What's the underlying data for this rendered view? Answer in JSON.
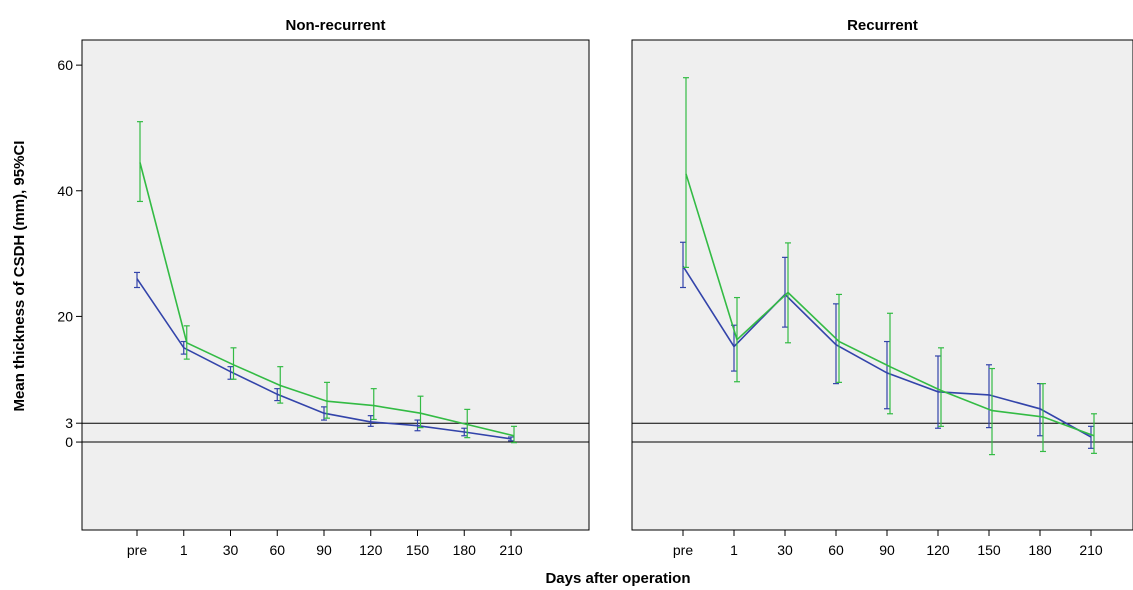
{
  "figure": {
    "ylabel": "Mean thickness of CSDH (mm), 95%CI",
    "xlabel": "Days after operation"
  },
  "colors": {
    "panel_bg": "#efefef",
    "frame": "#000000",
    "blue": "#3344aa",
    "green": "#33bb44"
  },
  "chart_data": [
    {
      "type": "line",
      "title": "Non-recurrent",
      "categories": [
        "pre",
        "1",
        "30",
        "60",
        "90",
        "120",
        "150",
        "180",
        "210"
      ],
      "ylim": [
        -14,
        64
      ],
      "yticks": [
        0,
        3,
        20,
        40,
        60
      ],
      "reference_lines": [
        0,
        3
      ],
      "grid": false,
      "series": [
        {
          "color": "blue",
          "values": [
            26.0,
            15.0,
            11.2,
            7.6,
            4.6,
            3.2,
            2.6,
            1.6,
            0.5
          ],
          "ci_low": [
            24.6,
            14.0,
            10.0,
            6.6,
            3.5,
            2.5,
            1.8,
            1.0,
            0.2
          ],
          "ci_high": [
            27.0,
            16.0,
            12.0,
            8.5,
            5.6,
            4.2,
            3.5,
            2.2,
            0.8
          ]
        },
        {
          "color": "green",
          "values": [
            44.5,
            15.8,
            12.3,
            9.0,
            6.5,
            5.8,
            4.6,
            2.8,
            1.0
          ],
          "ci_low": [
            38.3,
            13.2,
            10.0,
            6.2,
            3.8,
            3.6,
            2.3,
            0.7,
            -0.1
          ],
          "ci_high": [
            51.0,
            18.5,
            15.0,
            12.0,
            9.5,
            8.5,
            7.3,
            5.2,
            2.5
          ]
        }
      ]
    },
    {
      "type": "line",
      "title": "Recurrent",
      "categories": [
        "pre",
        "1",
        "30",
        "60",
        "90",
        "120",
        "150",
        "180",
        "210"
      ],
      "ylim": [
        -14,
        64
      ],
      "yticks": [
        0,
        3,
        20,
        40,
        60
      ],
      "reference_lines": [
        0,
        3
      ],
      "grid": false,
      "series": [
        {
          "color": "blue",
          "values": [
            28.0,
            15.2,
            23.5,
            15.5,
            11.0,
            8.0,
            7.5,
            5.3,
            0.8
          ],
          "ci_low": [
            24.6,
            11.3,
            18.3,
            9.3,
            5.3,
            2.2,
            2.3,
            1.0,
            -1.0
          ],
          "ci_high": [
            31.8,
            18.6,
            29.4,
            22.0,
            16.0,
            13.7,
            12.3,
            9.3,
            2.5
          ]
        },
        {
          "color": "green",
          "values": [
            42.7,
            16.3,
            23.8,
            16.0,
            12.0,
            8.2,
            5.0,
            4.0,
            1.0
          ],
          "ci_low": [
            27.8,
            9.6,
            15.8,
            9.5,
            4.5,
            2.5,
            -2.0,
            -1.5,
            -1.8
          ],
          "ci_high": [
            58.0,
            23.0,
            31.7,
            23.5,
            20.5,
            15.0,
            11.7,
            9.3,
            4.5
          ]
        }
      ]
    }
  ]
}
